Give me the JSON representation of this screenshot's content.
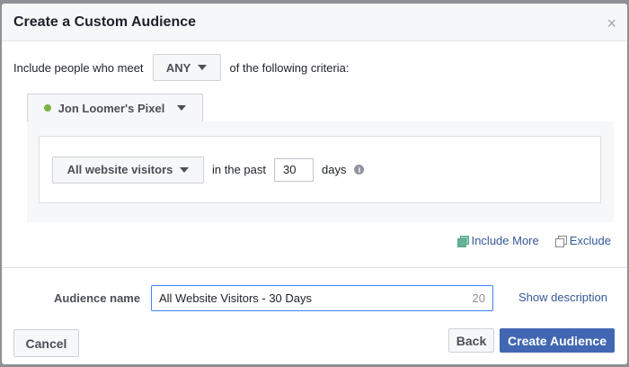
{
  "dialog": {
    "title": "Create a Custom Audience",
    "close": "×"
  },
  "criteria": {
    "prefix": "Include people who meet",
    "match": "ANY",
    "suffix": "of the following criteria:"
  },
  "pixel": {
    "name": "Jon Loomer's Pixel",
    "status_color": "#7bb342"
  },
  "rule": {
    "event": "All website visitors",
    "in_past": "in the past",
    "days_value": "30",
    "days_label": "days",
    "info": "i"
  },
  "actions": {
    "include_more": "Include More",
    "exclude": "Exclude"
  },
  "audience": {
    "label": "Audience name",
    "value": "All Website Visitors - 30 Days",
    "remaining": "20",
    "show_description": "Show description"
  },
  "footer": {
    "cancel": "Cancel",
    "back": "Back",
    "create": "Create Audience"
  }
}
